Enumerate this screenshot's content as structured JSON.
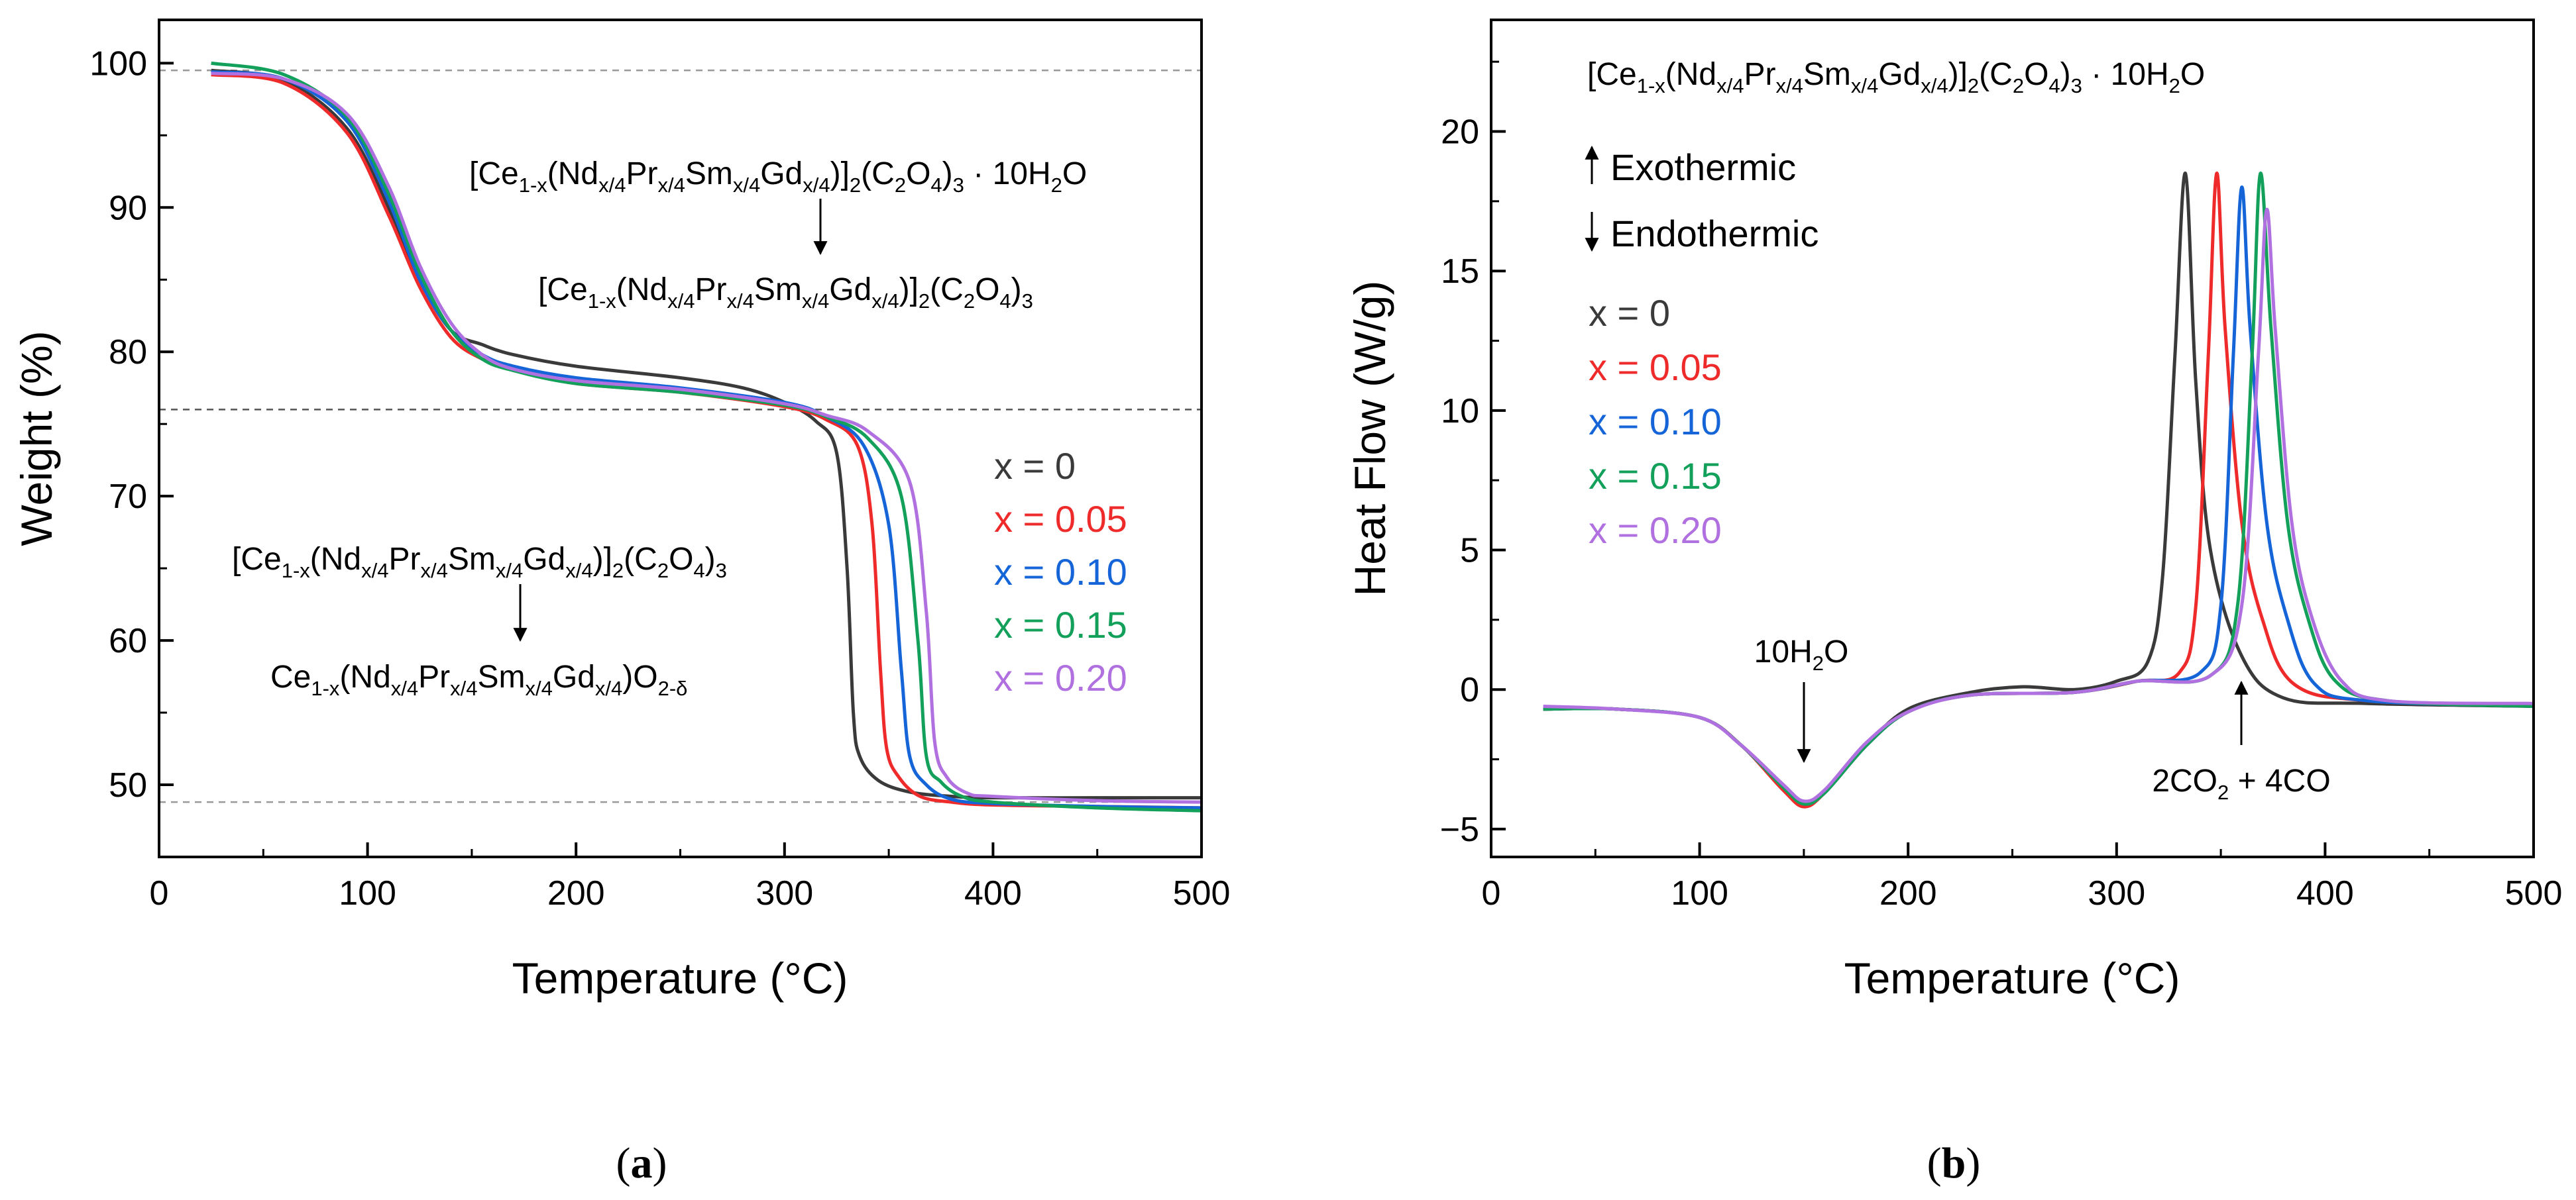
{
  "colors": {
    "x0": "#3a3a3a",
    "x005": "#ee2a2a",
    "x010": "#1565d8",
    "x015": "#13a05a",
    "x020": "#b070e0"
  },
  "chart_data": [
    {
      "type": "line",
      "panel_label": "a",
      "xlabel": "Temperature (°C)",
      "ylabel": "Weight (%)",
      "xlim": [
        0,
        500
      ],
      "ylim": [
        45,
        103
      ],
      "xticks": [
        0,
        100,
        200,
        300,
        400,
        500
      ],
      "yticks": [
        50,
        60,
        70,
        80,
        90,
        100
      ],
      "reference_lines": [
        99.5,
        76,
        48.8
      ],
      "legend_position": "right",
      "annotations": [
        {
          "text": "[Ce1-x(Ndx/4Prx/4Smx/4Gdx/4)]2(C2O4)3 · 10H2O",
          "arrow_to": "[Ce1-x(Ndx/4Prx/4Smx/4Gdx/4)]2(C2O4)3"
        },
        {
          "text": "[Ce1-x(Ndx/4Prx/4Smx/4Gdx/4)]2(C2O4)3",
          "arrow_to": "Ce1-x(Ndx/4Prx/4Smx/4Gdx/4)O2-δ"
        }
      ],
      "series": [
        {
          "name": "x = 0",
          "color_key": "x0",
          "x": [
            25,
            60,
            90,
            110,
            125,
            140,
            155,
            170,
            200,
            250,
            280,
            300,
            315,
            325,
            330,
            333,
            336,
            345,
            360,
            380,
            400,
            450,
            500
          ],
          "y": [
            99.5,
            98.8,
            95.5,
            90,
            85,
            81.5,
            80.5,
            79.8,
            79,
            78.2,
            77.5,
            76.5,
            75.2,
            73,
            65,
            55,
            52,
            50.3,
            49.5,
            49.2,
            49.1,
            49.1,
            49.1
          ]
        },
        {
          "name": "x = 0.05",
          "color_key": "x005",
          "x": [
            25,
            60,
            90,
            110,
            125,
            140,
            155,
            170,
            200,
            250,
            300,
            320,
            335,
            342,
            346,
            349,
            355,
            365,
            380,
            400,
            450,
            500
          ],
          "y": [
            99.2,
            98.6,
            95.2,
            89.5,
            84.5,
            81,
            79.5,
            78.8,
            77.8,
            77.2,
            76.2,
            75.3,
            73.5,
            68,
            58,
            52.5,
            50.5,
            49.2,
            48.8,
            48.6,
            48.5,
            48.4
          ]
        },
        {
          "name": "x = 0.10",
          "color_key": "x010",
          "x": [
            25,
            60,
            90,
            110,
            125,
            140,
            155,
            170,
            200,
            250,
            300,
            320,
            338,
            350,
            356,
            360,
            368,
            380,
            400,
            450,
            500
          ],
          "y": [
            99.4,
            98.9,
            96,
            90.5,
            85,
            81.5,
            79.8,
            79,
            78.2,
            77.5,
            76.5,
            75.5,
            73.5,
            68,
            58,
            52,
            50,
            49,
            48.7,
            48.5,
            48.4
          ]
        },
        {
          "name": "x = 0.15",
          "color_key": "x015",
          "x": [
            25,
            60,
            90,
            110,
            125,
            140,
            155,
            170,
            200,
            250,
            300,
            320,
            340,
            356,
            364,
            368,
            375,
            385,
            400,
            450,
            500
          ],
          "y": [
            100,
            99.2,
            96.3,
            91,
            85.5,
            81.5,
            79.5,
            78.7,
            77.8,
            77.2,
            76.3,
            75.5,
            74,
            70,
            60,
            52,
            50.2,
            49.2,
            48.8,
            48.4,
            48.2
          ]
        },
        {
          "name": "x = 0.20",
          "color_key": "x020",
          "x": [
            25,
            60,
            90,
            110,
            125,
            140,
            155,
            170,
            200,
            250,
            300,
            320,
            340,
            360,
            368,
            372,
            378,
            388,
            400,
            450,
            500
          ],
          "y": [
            99.3,
            98.9,
            96.5,
            91.5,
            86,
            82,
            79.8,
            78.8,
            78,
            77.4,
            76.4,
            75.6,
            74.5,
            71,
            62,
            53,
            50.5,
            49.4,
            49.2,
            48.9,
            48.8
          ]
        }
      ]
    },
    {
      "type": "line",
      "panel_label": "b",
      "title": "[Ce1-x(Ndx/4Prx/4Smx/4Gdx/4)]2(C2O4)3 · 10H2O",
      "xlabel": "Temperature (°C)",
      "ylabel": "Heat Flow (W/g)",
      "xlim": [
        0,
        500
      ],
      "ylim": [
        -6,
        24
      ],
      "xticks": [
        0,
        100,
        200,
        300,
        400,
        500
      ],
      "yticks": [
        -5,
        0,
        5,
        10,
        15,
        20
      ],
      "direction_labels": [
        "Exothermic",
        "Endothermic"
      ],
      "legend_position": "left",
      "annotations": [
        {
          "text": "10H2O",
          "x": 150,
          "y": -3.8
        },
        {
          "text": "2CO2 + 4CO",
          "x": 360,
          "y": -0.2
        }
      ],
      "series": [
        {
          "name": "x = 0",
          "color_key": "x0",
          "x": [
            25,
            60,
            100,
            120,
            140,
            150,
            160,
            180,
            200,
            230,
            255,
            280,
            300,
            315,
            322,
            328,
            333,
            338,
            345,
            360,
            380,
            420,
            500
          ],
          "y": [
            -0.7,
            -0.7,
            -1,
            -2,
            -3.5,
            -4.1,
            -3.7,
            -2,
            -0.7,
            -0.1,
            0.1,
            0,
            0.3,
            1,
            4,
            12,
            18.5,
            11,
            5,
            1.2,
            -0.3,
            -0.5,
            -0.6
          ]
        },
        {
          "name": "x = 0.05",
          "color_key": "x005",
          "x": [
            25,
            60,
            100,
            120,
            140,
            150,
            160,
            180,
            200,
            230,
            280,
            310,
            330,
            338,
            344,
            348,
            352,
            360,
            370,
            385,
            420,
            500
          ],
          "y": [
            -0.7,
            -0.7,
            -1,
            -2,
            -3.6,
            -4.2,
            -3.7,
            -2,
            -0.8,
            -0.2,
            -0.1,
            0.3,
            0.6,
            3,
            12,
            18.5,
            13,
            6,
            2.5,
            0.2,
            -0.4,
            -0.6
          ]
        },
        {
          "name": "x = 0.10",
          "color_key": "x010",
          "x": [
            25,
            60,
            100,
            120,
            140,
            150,
            160,
            180,
            200,
            230,
            280,
            310,
            340,
            350,
            356,
            360,
            364,
            372,
            382,
            395,
            420,
            500
          ],
          "y": [
            -0.7,
            -0.7,
            -1,
            -2,
            -3.5,
            -4.1,
            -3.7,
            -2,
            -0.8,
            -0.2,
            -0.1,
            0.3,
            0.6,
            3,
            12,
            18,
            13,
            6,
            2.5,
            0.2,
            -0.4,
            -0.6
          ]
        },
        {
          "name": "x = 0.15",
          "color_key": "x015",
          "x": [
            25,
            60,
            100,
            120,
            140,
            150,
            160,
            180,
            200,
            230,
            280,
            310,
            345,
            358,
            365,
            369,
            374,
            382,
            392,
            405,
            430,
            500
          ],
          "y": [
            -0.7,
            -0.7,
            -1,
            -2,
            -3.5,
            -4.1,
            -3.7,
            -2,
            -0.8,
            -0.2,
            -0.1,
            0.3,
            0.5,
            3,
            12,
            18.5,
            13,
            6,
            2.5,
            0.3,
            -0.4,
            -0.6
          ]
        },
        {
          "name": "x = 0.20",
          "color_key": "x020",
          "x": [
            25,
            60,
            100,
            120,
            140,
            150,
            160,
            180,
            200,
            230,
            280,
            310,
            345,
            360,
            368,
            372,
            376,
            384,
            394,
            408,
            430,
            500
          ],
          "y": [
            -0.6,
            -0.7,
            -1,
            -2,
            -3.4,
            -4,
            -3.6,
            -1.9,
            -0.8,
            -0.2,
            -0.1,
            0.3,
            0.5,
            3,
            12,
            17.2,
            13,
            6,
            2.5,
            0.3,
            -0.4,
            -0.5
          ]
        }
      ]
    }
  ]
}
